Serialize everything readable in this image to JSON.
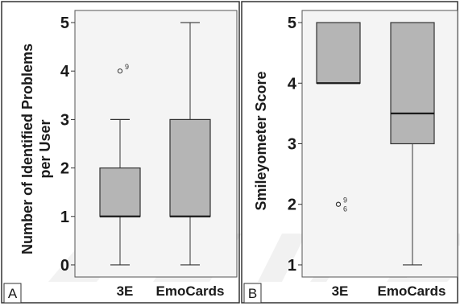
{
  "colors": {
    "plot_background": "#f4f4f4",
    "box_fill": "#b5b5b5",
    "stroke": "#333333",
    "watermark": "#e7e7e7"
  },
  "chart_data": [
    {
      "type": "box",
      "panel_label": "A",
      "ylabel_lines": [
        "Number of Identified Problems",
        "per User"
      ],
      "ylim": [
        -0.25,
        5.25
      ],
      "yticks": [
        0,
        1,
        2,
        3,
        4,
        5
      ],
      "categories": [
        "3E",
        "EmoCards"
      ],
      "boxes": [
        {
          "category": "3E",
          "min": 0,
          "q1": 1,
          "median": 1,
          "q3": 2,
          "max": 3,
          "outliers": [
            {
              "value": 4,
              "label": "9"
            }
          ]
        },
        {
          "category": "EmoCards",
          "min": 0,
          "q1": 1,
          "median": 1,
          "q3": 3,
          "max": 5,
          "outliers": []
        }
      ]
    },
    {
      "type": "box",
      "panel_label": "B",
      "ylabel_lines": [
        "Smileyometer Score"
      ],
      "ylim": [
        0.8,
        5.2
      ],
      "yticks": [
        1,
        2,
        3,
        4,
        5
      ],
      "categories": [
        "3E",
        "EmoCards"
      ],
      "boxes": [
        {
          "category": "3E",
          "min": 4,
          "q1": 4,
          "median": 4,
          "q3": 5,
          "max": 5,
          "outliers": [
            {
              "value": 2,
              "label": "9"
            },
            {
              "value": 2,
              "label": "6"
            }
          ]
        },
        {
          "category": "EmoCards",
          "min": 1,
          "q1": 3,
          "median": 3.5,
          "q3": 5,
          "max": 5,
          "outliers": []
        }
      ]
    }
  ]
}
